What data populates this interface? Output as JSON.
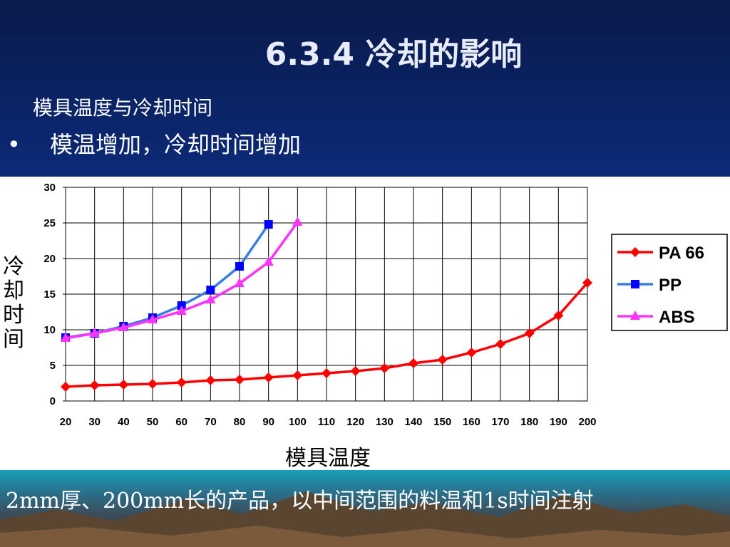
{
  "slide": {
    "title": "6.3.4 冷却的影响",
    "subtitle": "模具温度与冷却时间",
    "bullet_marker": "•",
    "bullet": "模温增加，冷却时间增加",
    "footer": "2mm厚、200mm长的产品，以中间范围的料温和1s时间注射"
  },
  "chart_data": {
    "type": "line",
    "xlabel": "模具温度",
    "ylabel": "冷却时间",
    "xlim": [
      20,
      200
    ],
    "ylim": [
      0,
      30
    ],
    "x_ticks": [
      20,
      30,
      40,
      50,
      60,
      70,
      80,
      90,
      100,
      110,
      120,
      130,
      140,
      150,
      160,
      170,
      180,
      190,
      200
    ],
    "y_ticks": [
      0,
      5,
      10,
      15,
      20,
      25,
      30
    ],
    "grid": true,
    "legend_position": "right",
    "series": [
      {
        "name": "PA 66",
        "color": "#ff0000",
        "marker": "diamond",
        "x": [
          20,
          30,
          40,
          50,
          60,
          70,
          80,
          90,
          100,
          110,
          120,
          130,
          140,
          150,
          160,
          170,
          180,
          190,
          200
        ],
        "y": [
          2.0,
          2.2,
          2.3,
          2.4,
          2.6,
          2.9,
          3.0,
          3.3,
          3.6,
          3.9,
          4.2,
          4.6,
          5.3,
          5.8,
          6.8,
          8.0,
          9.5,
          12.0,
          16.6
        ]
      },
      {
        "name": "PP",
        "color": "#3a7de0",
        "marker_color": "#0000ff",
        "marker": "square",
        "x": [
          20,
          30,
          40,
          50,
          60,
          70,
          80,
          90
        ],
        "y": [
          8.9,
          9.5,
          10.5,
          11.7,
          13.4,
          15.6,
          18.9,
          24.8
        ]
      },
      {
        "name": "ABS",
        "color": "#ff33ff",
        "marker": "triangle",
        "x": [
          20,
          30,
          40,
          50,
          60,
          70,
          80,
          90,
          100
        ],
        "y": [
          8.8,
          9.5,
          10.3,
          11.4,
          12.6,
          14.2,
          16.5,
          19.5,
          25.1
        ]
      }
    ]
  }
}
